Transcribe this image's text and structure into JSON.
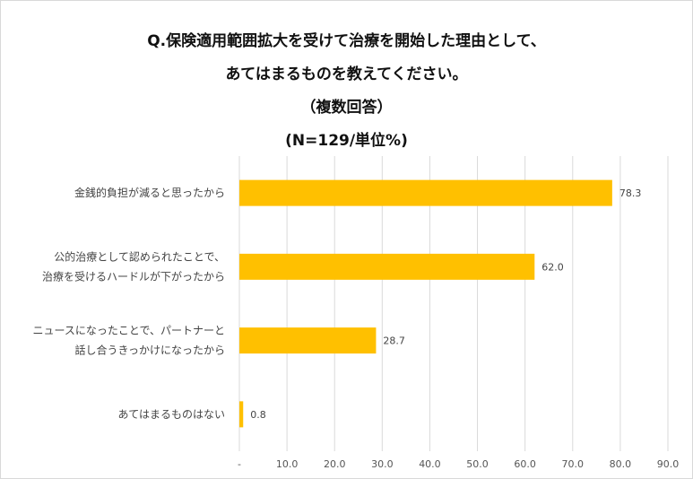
{
  "chart_data": {
    "type": "bar",
    "orientation": "horizontal",
    "title_lines": [
      "Q.保険適用範囲拡大を受けて治療を開始した理由として、",
      "あてはまるものを教えてください。",
      "（複数回答）",
      "(N=129/単位%)"
    ],
    "categories": [
      [
        "金銭的負担が減ると思ったから"
      ],
      [
        "公的治療として認められたことで、",
        "治療を受けるハードルが下がったから"
      ],
      [
        "ニュースになったことで、パートナーと",
        "話し合うきっかけになったから"
      ],
      [
        "あてはまるものはない"
      ]
    ],
    "values": [
      78.3,
      62.0,
      28.7,
      0.8
    ],
    "value_labels": [
      "78.3",
      "62.0",
      "28.7",
      "0.8"
    ],
    "xlim": [
      0,
      90
    ],
    "x_ticks": [
      "-",
      "10.0",
      "20.0",
      "30.0",
      "40.0",
      "50.0",
      "60.0",
      "70.0",
      "80.0",
      "90.0"
    ],
    "grid": true,
    "bar_color": "#FFC000",
    "grid_color": "#d9d9d9"
  }
}
